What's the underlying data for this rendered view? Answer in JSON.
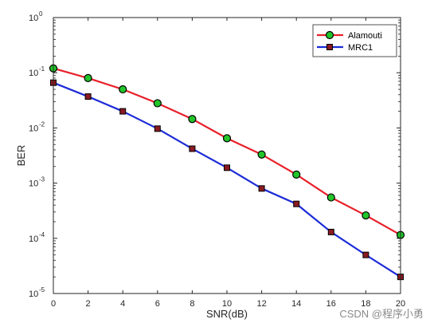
{
  "chart_data": {
    "type": "line",
    "xlabel": "SNR(dB)",
    "ylabel": "BER",
    "xlim": [
      0,
      20
    ],
    "ylim": [
      1e-05,
      1
    ],
    "yscale": "log",
    "grid": false,
    "legend_position": "top-right",
    "x": [
      0,
      2,
      4,
      6,
      8,
      10,
      12,
      14,
      16,
      18,
      20
    ],
    "x_ticks": [
      "0",
      "2",
      "4",
      "6",
      "8",
      "10",
      "12",
      "14",
      "16",
      "18",
      "20"
    ],
    "y_ticks": [
      {
        "value": 1,
        "base": "10",
        "exp": "0"
      },
      {
        "value": 0.1,
        "base": "10",
        "exp": "-1"
      },
      {
        "value": 0.01,
        "base": "10",
        "exp": "-2"
      },
      {
        "value": 0.001,
        "base": "10",
        "exp": "-3"
      },
      {
        "value": 0.0001,
        "base": "10",
        "exp": "-4"
      },
      {
        "value": 1e-05,
        "base": "10",
        "exp": "-5"
      }
    ],
    "series": [
      {
        "name": "Alamouti",
        "color": "#e8202a",
        "marker": "circle",
        "marker_fill": "#22c42a",
        "values": [
          0.12,
          0.08,
          0.05,
          0.028,
          0.0145,
          0.0065,
          0.0033,
          0.00143,
          0.00055,
          0.00026,
          0.000115
        ]
      },
      {
        "name": "MRC1",
        "color": "#1c2bd6",
        "marker": "square",
        "marker_fill": "#8a1a22",
        "values": [
          0.066,
          0.037,
          0.02,
          0.0097,
          0.0042,
          0.0019,
          0.0008,
          0.00042,
          0.00013,
          5e-05,
          2e-05
        ]
      }
    ]
  },
  "watermark": "CSDN @程序小勇"
}
